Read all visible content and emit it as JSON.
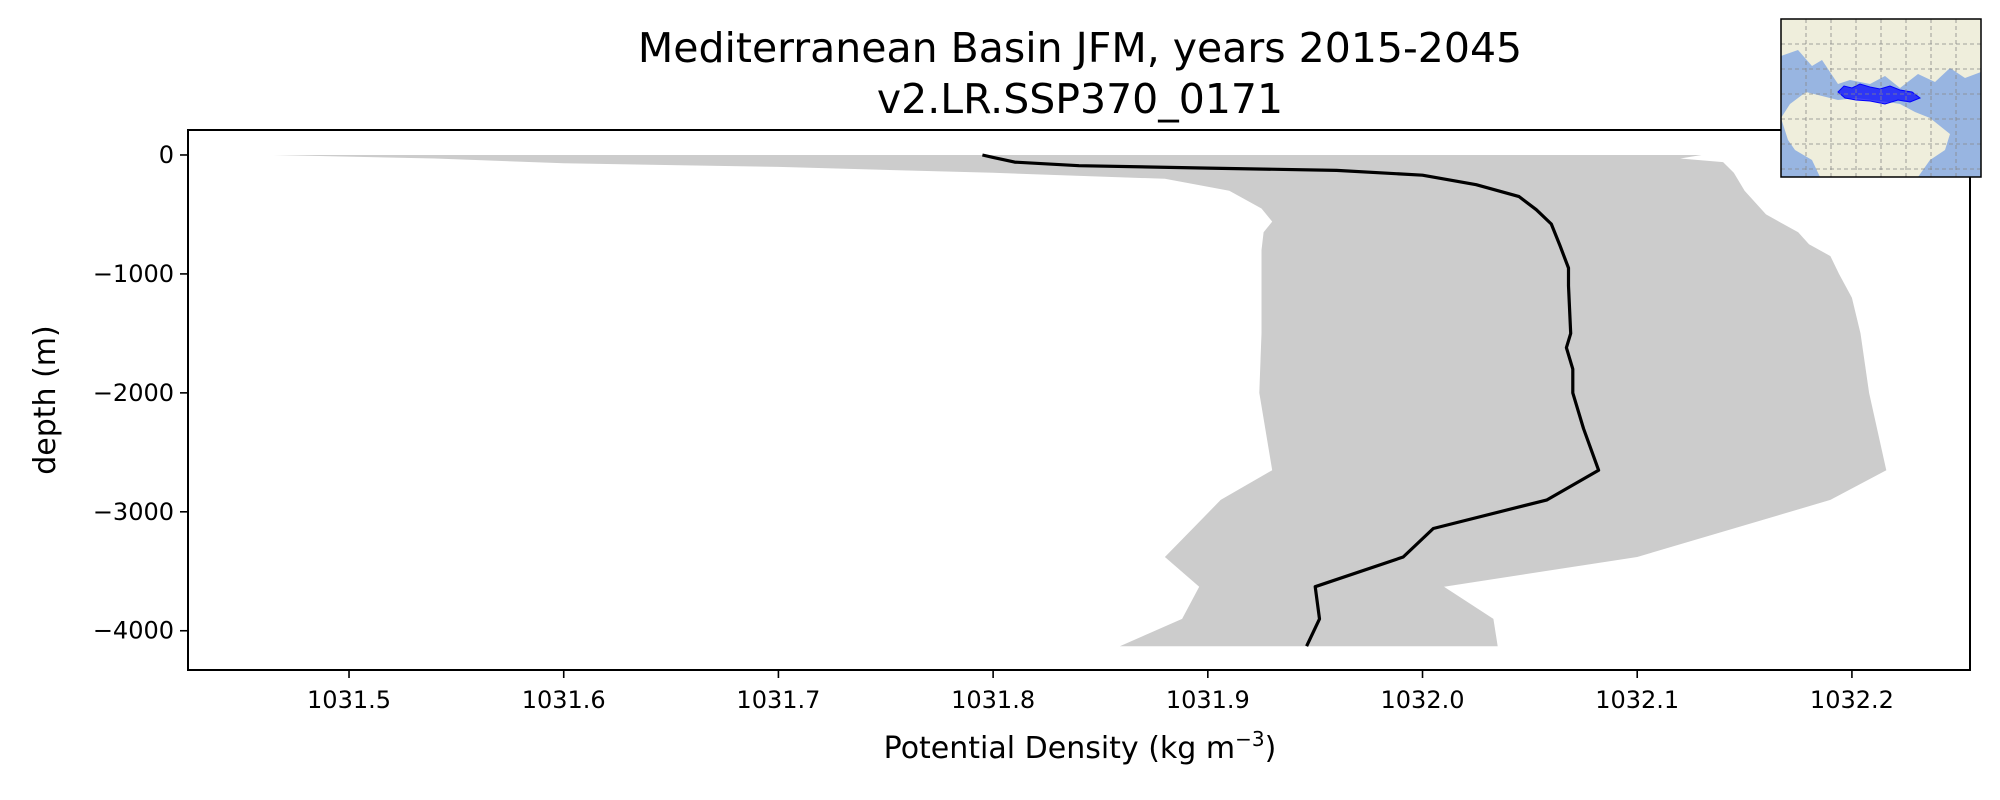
{
  "chart_data": {
    "type": "line",
    "title": "Mediterranean Basin JFM, years 2015-2045",
    "subtitle": "v2.LR.SSP370_0171",
    "xlabel": "Potential Density (kg m",
    "xlabel_superscript": "−3",
    "xlabel_suffix": ")",
    "ylabel": "depth (m)",
    "xlim": [
      1031.425,
      1032.255
    ],
    "ylim": [
      -4330,
      210
    ],
    "xticks": [
      1031.5,
      1031.6,
      1031.7,
      1031.8,
      1031.9,
      1032.0,
      1032.1,
      1032.2
    ],
    "xtick_labels": [
      "1031.5",
      "1031.6",
      "1031.7",
      "1031.8",
      "1031.9",
      "1032.0",
      "1032.1",
      "1032.2"
    ],
    "yticks": [
      0,
      -1000,
      -2000,
      -3000,
      -4000
    ],
    "ytick_labels": [
      "0",
      "−1000",
      "−2000",
      "−3000",
      "−4000"
    ],
    "grid": false,
    "mean_profile": {
      "color": "#000000",
      "x": [
        1031.795,
        1031.8,
        1031.81,
        1031.84,
        1031.9,
        1031.96,
        1032.0,
        1032.025,
        1032.045,
        1032.053,
        1032.06,
        1032.064,
        1032.068,
        1032.068,
        1032.069,
        1032.067,
        1032.07,
        1032.07,
        1032.075,
        1032.082,
        1032.058,
        1032.005,
        1031.991,
        1031.95,
        1031.952,
        1031.946
      ],
      "depth": [
        0,
        -20,
        -60,
        -90,
        -110,
        -130,
        -170,
        -250,
        -350,
        -460,
        -580,
        -760,
        -950,
        -1100,
        -1500,
        -1620,
        -1800,
        -2000,
        -2300,
        -2650,
        -2900,
        -3140,
        -3380,
        -3630,
        -3900,
        -4130
      ]
    },
    "envelope": {
      "color": "#cccccc",
      "left_x": [
        1031.465,
        1031.54,
        1031.6,
        1031.7,
        1031.8,
        1031.88,
        1031.91,
        1031.925,
        1031.93,
        1031.926,
        1031.925,
        1031.925,
        1031.925,
        1031.924,
        1031.93,
        1031.906,
        1031.893,
        1031.88,
        1031.896,
        1031.888,
        1031.859
      ],
      "left_depth": [
        0,
        -30,
        -70,
        -100,
        -150,
        -200,
        -300,
        -450,
        -560,
        -650,
        -800,
        -1000,
        -1500,
        -2000,
        -2650,
        -2900,
        -3140,
        -3380,
        -3630,
        -3900,
        -4130
      ],
      "right_x": [
        1032.13,
        1032.12,
        1032.14,
        1032.145,
        1032.15,
        1032.16,
        1032.175,
        1032.18,
        1032.19,
        1032.194,
        1032.2,
        1032.204,
        1032.208,
        1032.216,
        1032.19,
        1032.1,
        1032.01,
        1032.033,
        1032.035
      ],
      "right_depth": [
        0,
        -30,
        -60,
        -150,
        -300,
        -500,
        -650,
        -750,
        -850,
        -1000,
        -1200,
        -1500,
        -2000,
        -2650,
        -2900,
        -3380,
        -3630,
        -3900,
        -4130
      ]
    }
  },
  "inset_map": {
    "region_color": "#0000ff",
    "ocean_color": "#98b5e1",
    "land_color": "#efeedc"
  }
}
